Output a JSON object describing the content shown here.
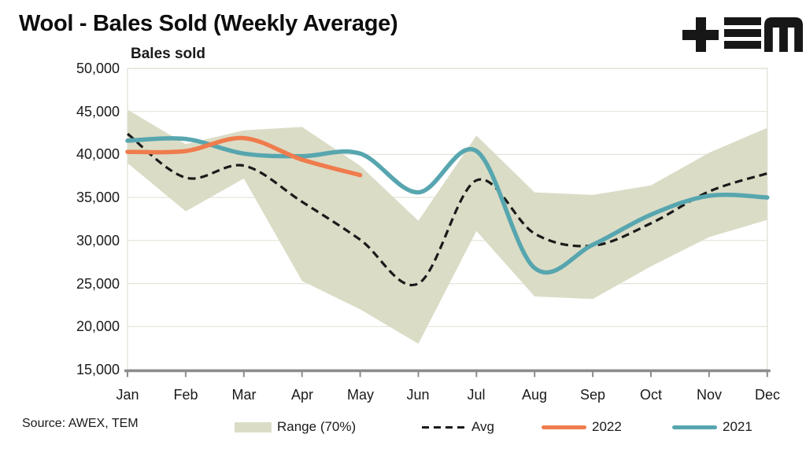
{
  "title": "Wool - Bales Sold (Weekly Average)",
  "source": "Source: AWEX, TEM",
  "axis_title": "Bales sold",
  "logo": {
    "name": "tem-logo",
    "color": "#171717"
  },
  "colors": {
    "band": "#DBDCC6",
    "avg": "#1a1a1a",
    "y2022": "#EF7C4D",
    "y2021": "#57A6AF",
    "gridline": "#E5E5DC",
    "plot_border": "#DEDED4",
    "axis": "#8C8C8C"
  },
  "chart_data": {
    "type": "line",
    "title": "Wool - Bales Sold (Weekly Average)",
    "ylabel": "Bales sold",
    "xlabel": "",
    "ylim": [
      15000,
      50000
    ],
    "grid": true,
    "legend_position": "bottom",
    "categories": [
      "Jan",
      "Feb",
      "Mar",
      "Apr",
      "May",
      "Jun",
      "Jul",
      "Aug",
      "Sep",
      "Oct",
      "Nov",
      "Dec"
    ],
    "yticks": [
      {
        "value": 50000,
        "label": "50,000"
      },
      {
        "value": 45000,
        "label": "45,000"
      },
      {
        "value": 40000,
        "label": "40,000"
      },
      {
        "value": 35000,
        "label": "35,000"
      },
      {
        "value": 30000,
        "label": "30,000"
      },
      {
        "value": 25000,
        "label": "25,000"
      },
      {
        "value": 20000,
        "label": "20,000"
      },
      {
        "value": 15000,
        "label": "15,000"
      }
    ],
    "series": [
      {
        "name": "Range (70%)",
        "type": "band",
        "color": "#DBDCC6",
        "upper": [
          45200,
          41200,
          42800,
          43200,
          38700,
          32300,
          42200,
          35600,
          35300,
          36400,
          40200,
          43100
        ],
        "lower": [
          39000,
          33400,
          37200,
          25300,
          22000,
          18000,
          31100,
          23500,
          23200,
          27000,
          30400,
          32400
        ]
      },
      {
        "name": "Avg",
        "type": "dashed-line",
        "color": "#1a1a1a",
        "values": [
          42400,
          37300,
          38700,
          34500,
          30100,
          25000,
          37000,
          30800,
          29400,
          32000,
          35700,
          37800
        ]
      },
      {
        "name": "2022",
        "type": "line",
        "color": "#EF7C4D",
        "values": [
          40300,
          40400,
          41900,
          39400,
          37600
        ]
      },
      {
        "name": "2021",
        "type": "line",
        "color": "#57A6AF",
        "values": [
          41600,
          41800,
          40100,
          39800,
          40100,
          35600,
          40400,
          26800,
          29500,
          33000,
          35200,
          35000
        ]
      }
    ]
  }
}
